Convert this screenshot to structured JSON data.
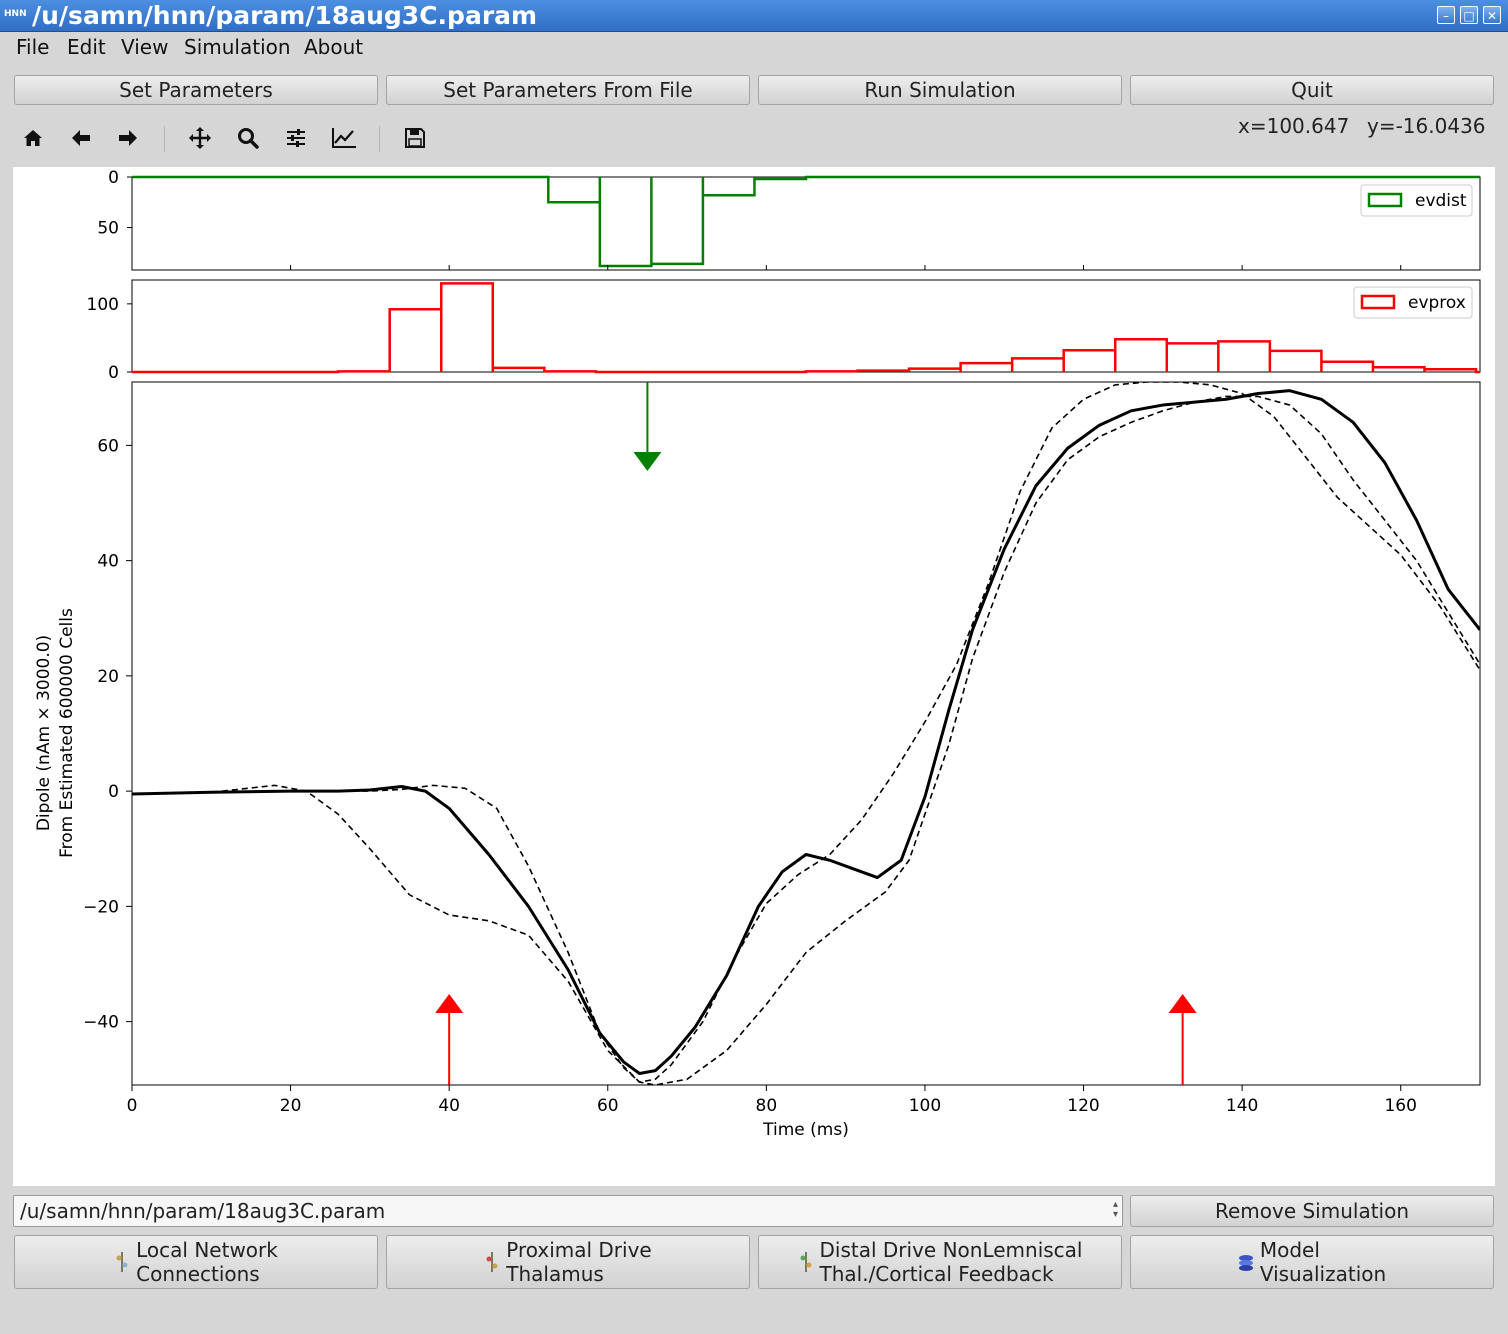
{
  "window": {
    "title": "/u/samn/hnn/param/18aug3C.param",
    "app_icon": "HNN"
  },
  "menubar": {
    "items": [
      "File",
      "Edit",
      "View",
      "Simulation",
      "About"
    ]
  },
  "top_buttons": {
    "set_params": "Set Parameters",
    "set_params_file": "Set Parameters From File",
    "run": "Run Simulation",
    "quit": "Quit"
  },
  "toolbar": {
    "icons": [
      "home-icon",
      "back-arrow-icon",
      "forward-arrow-icon",
      "pan-icon",
      "zoom-icon",
      "subplots-config-icon",
      "axes-edit-icon",
      "save-icon"
    ],
    "coord_x": "x=100.647",
    "coord_y": "y=-16.0436"
  },
  "chart_data": [
    {
      "type": "bar",
      "panel": "evdist histogram",
      "legend": "evdist",
      "color": "#008000",
      "inverted_y": true,
      "yticks": [
        "0",
        "50"
      ],
      "bins": [
        {
          "x0": 52.5,
          "x1": 59.0,
          "y": 25
        },
        {
          "x0": 59.0,
          "x1": 65.5,
          "y": 88
        },
        {
          "x0": 65.5,
          "x1": 72.0,
          "y": 86
        },
        {
          "x0": 72.0,
          "x1": 78.5,
          "y": 18
        },
        {
          "x0": 78.5,
          "x1": 85.0,
          "y": 2
        }
      ]
    },
    {
      "type": "bar",
      "panel": "evprox histogram",
      "legend": "evprox",
      "color": "#ff0000",
      "yticks": [
        "100",
        "0"
      ],
      "bins": [
        {
          "x0": 26.0,
          "x1": 32.5,
          "y": 1
        },
        {
          "x0": 32.5,
          "x1": 39.0,
          "y": 92
        },
        {
          "x0": 39.0,
          "x1": 45.5,
          "y": 130
        },
        {
          "x0": 45.5,
          "x1": 52.0,
          "y": 6
        },
        {
          "x0": 52.0,
          "x1": 58.5,
          "y": 1
        },
        {
          "x0": 85.0,
          "x1": 91.5,
          "y": 1
        },
        {
          "x0": 91.5,
          "x1": 98.0,
          "y": 2
        },
        {
          "x0": 98.0,
          "x1": 104.5,
          "y": 5
        },
        {
          "x0": 104.5,
          "x1": 111.0,
          "y": 13
        },
        {
          "x0": 111.0,
          "x1": 117.5,
          "y": 20
        },
        {
          "x0": 117.5,
          "x1": 124.0,
          "y": 32
        },
        {
          "x0": 124.0,
          "x1": 130.5,
          "y": 48
        },
        {
          "x0": 130.5,
          "x1": 137.0,
          "y": 42
        },
        {
          "x0": 137.0,
          "x1": 143.5,
          "y": 45
        },
        {
          "x0": 143.5,
          "x1": 150.0,
          "y": 31
        },
        {
          "x0": 150.0,
          "x1": 156.5,
          "y": 15
        },
        {
          "x0": 156.5,
          "x1": 163.0,
          "y": 7
        },
        {
          "x0": 163.0,
          "x1": 169.5,
          "y": 4
        }
      ]
    },
    {
      "type": "line",
      "panel": "dipole",
      "xlabel": "Time (ms)",
      "ylabel": "Dipole (nAm × 3000.0)",
      "ylabel2": "From Estimated 600000 Cells",
      "xlim": [
        0,
        170
      ],
      "ylim": [
        -51,
        71
      ],
      "xticks": [
        0,
        20,
        40,
        60,
        80,
        100,
        120,
        140,
        160
      ],
      "xtick_labels": [
        "0",
        "20",
        "40",
        "60",
        "80",
        "100",
        "120",
        "140",
        "160"
      ],
      "yticks": [
        -40,
        -20,
        0,
        20,
        40,
        60
      ],
      "ytick_labels": [
        "−40",
        "−20",
        "0",
        "20",
        "40",
        "60"
      ],
      "series": [
        {
          "style": "solid",
          "x": [
            0,
            10,
            20,
            26,
            30,
            34,
            37,
            40,
            45,
            50,
            55,
            59,
            62,
            64,
            66,
            68,
            71,
            75,
            79,
            82,
            85,
            88,
            91,
            94,
            97,
            100,
            103,
            106,
            110,
            114,
            118,
            122,
            126,
            130,
            134,
            138,
            142,
            146,
            150,
            154,
            158,
            162,
            166,
            170
          ],
          "y": [
            -0.5,
            -0.2,
            0,
            0,
            0.2,
            0.8,
            0,
            -3,
            -11,
            -20,
            -31,
            -42,
            -47,
            -49,
            -48.5,
            -46,
            -41,
            -32,
            -20,
            -14,
            -11,
            -12,
            -13.5,
            -15,
            -12,
            -1,
            14,
            28,
            42,
            53,
            59.5,
            63.5,
            66,
            67,
            67.5,
            68,
            69,
            69.5,
            68,
            64,
            57,
            47,
            35,
            28
          ]
        },
        {
          "style": "dashed",
          "x": [
            0,
            10,
            18,
            22,
            26,
            30,
            35,
            40,
            45,
            50,
            55,
            60,
            64,
            66,
            68,
            72,
            76,
            80,
            84,
            88,
            92,
            96,
            100,
            104,
            108,
            112,
            116,
            120,
            124,
            128,
            132,
            136,
            140,
            144,
            148,
            152,
            156,
            160,
            165,
            170
          ],
          "y": [
            -0.5,
            -0.2,
            1,
            0,
            -4,
            -10,
            -18,
            -21.5,
            -22.5,
            -25,
            -33,
            -45,
            -50.5,
            -50,
            -47.5,
            -40,
            -29,
            -19.5,
            -14.5,
            -11,
            -5,
            3,
            12,
            22,
            36,
            52,
            63,
            68,
            70.5,
            71,
            71,
            70.5,
            69,
            65,
            58,
            51,
            46,
            41,
            32,
            21
          ]
        },
        {
          "style": "dashed",
          "x": [
            0,
            10,
            20,
            26,
            30,
            34,
            38,
            42,
            46,
            50,
            55,
            59,
            62,
            64,
            66,
            70,
            75,
            80,
            85,
            90,
            95,
            98,
            100,
            103,
            106,
            110,
            114,
            118,
            122,
            126,
            130,
            134,
            138,
            142,
            146,
            150,
            154,
            158,
            162,
            166,
            170
          ],
          "y": [
            -0.5,
            -0.2,
            0,
            0,
            0,
            0.3,
            1,
            0.5,
            -3,
            -13,
            -28,
            -42,
            -48,
            -50.5,
            -51,
            -50,
            -45,
            -37,
            -28,
            -22.5,
            -17.5,
            -12,
            -4,
            8,
            23,
            38,
            50,
            57.5,
            61.5,
            64,
            66,
            67.5,
            68.5,
            68.5,
            67,
            62,
            54,
            47,
            40,
            31,
            22
          ]
        }
      ],
      "markers": [
        {
          "type": "distal-input",
          "x": 65,
          "direction": "down",
          "color": "#008000"
        },
        {
          "type": "proximal-input",
          "x": 40,
          "direction": "up",
          "color": "#ff0000"
        },
        {
          "type": "proximal-input",
          "x": 132.5,
          "direction": "up",
          "color": "#ff0000"
        }
      ]
    }
  ],
  "bottom": {
    "sim_select_value": "/u/samn/hnn/param/18aug3C.param",
    "remove_sim": "Remove Simulation",
    "local_network_1": "Local Network",
    "local_network_2": "Connections",
    "proximal_1": "Proximal Drive",
    "proximal_2": "Thalamus",
    "distal_1": "Distal Drive NonLemniscal",
    "distal_2": "Thal./Cortical Feedback",
    "model_vis_1": "Model",
    "model_vis_2": "Visualization"
  }
}
